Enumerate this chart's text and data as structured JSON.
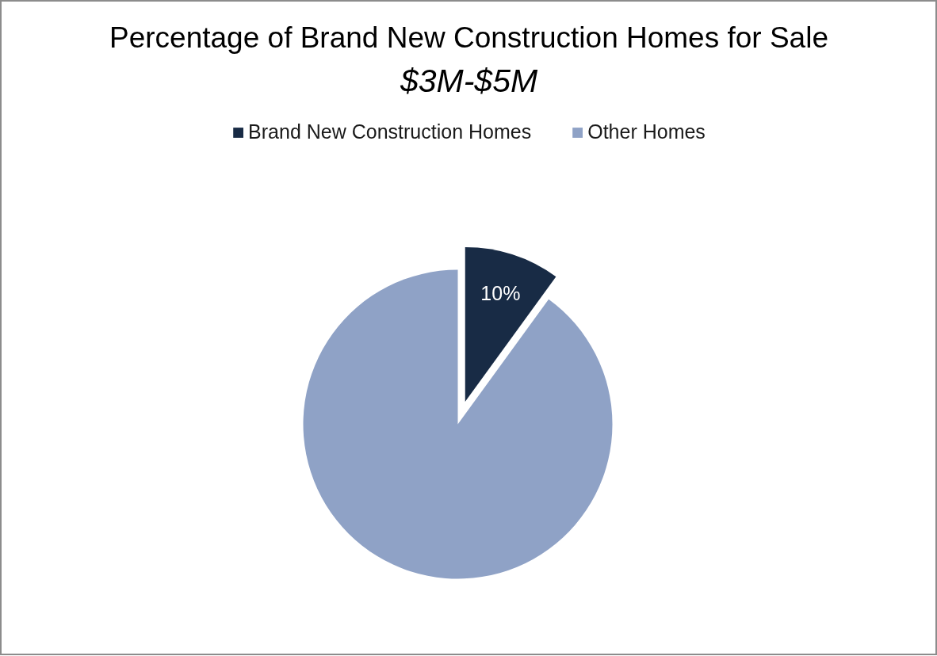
{
  "chart_data": {
    "type": "pie",
    "title": "Percentage of Brand New Construction Homes for Sale",
    "subtitle": "$3M-$5M",
    "categories": [
      "Brand New Construction Homes",
      "Other Homes"
    ],
    "values": [
      10,
      90
    ],
    "colors": [
      "#182b45",
      "#8fa2c6"
    ],
    "value_labels": [
      "10%",
      null
    ],
    "legend": "top"
  }
}
